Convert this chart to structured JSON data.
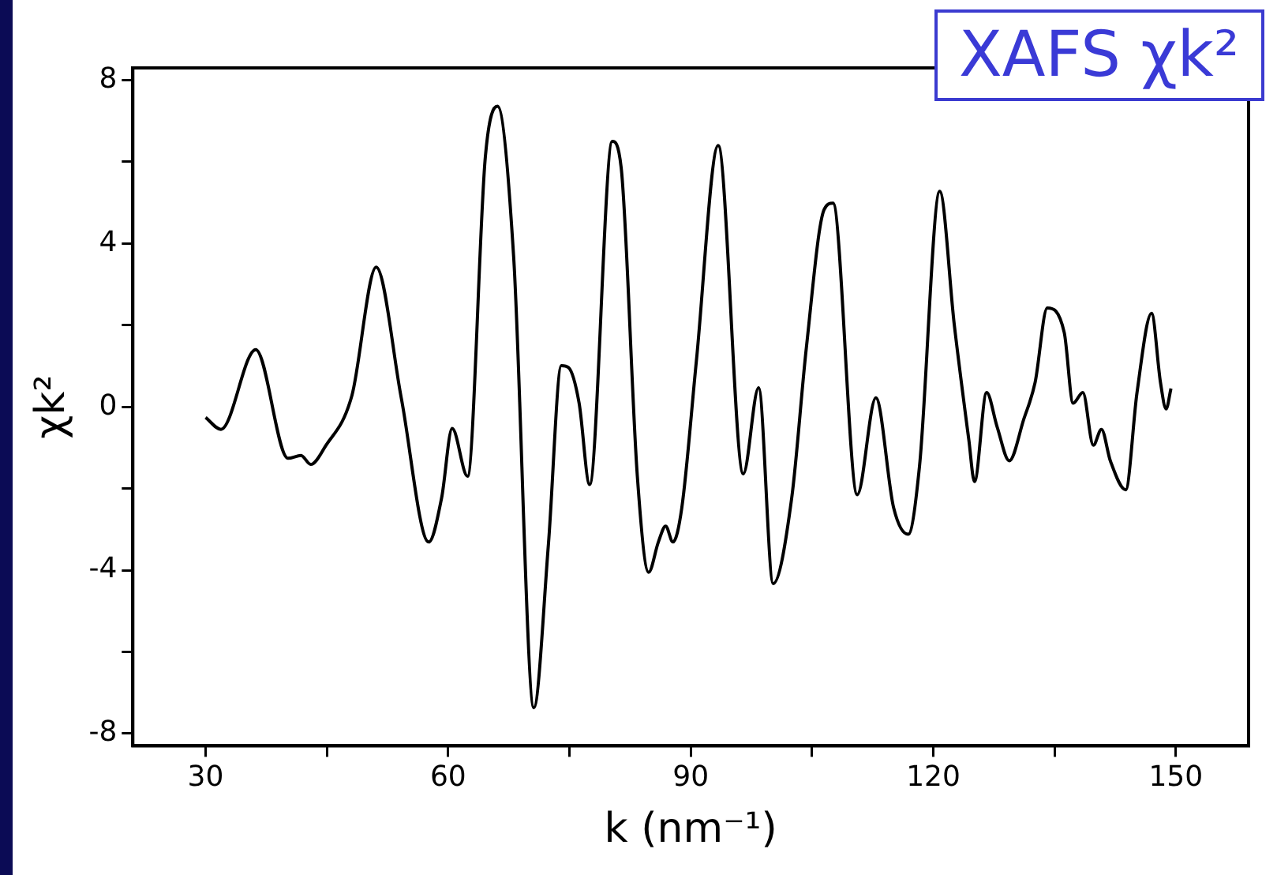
{
  "chart_data": {
    "type": "line",
    "title": "XAFS χk²",
    "xlabel": "k (nm⁻¹)",
    "ylabel": "χk²",
    "xlim": [
      21,
      159
    ],
    "xticks": [
      30,
      {
        "value": 45,
        "label": null
      },
      60,
      {
        "value": 75,
        "label": null
      },
      90,
      {
        "value": 105,
        "label": null
      },
      120,
      {
        "value": 135,
        "label": null
      },
      150
    ],
    "ylim": [
      -8.3,
      8.3
    ],
    "yticks": [
      -8,
      {
        "value": -6,
        "label": null
      },
      -4,
      {
        "value": -2,
        "label": null
      },
      0,
      {
        "value": 2,
        "label": null
      },
      4,
      {
        "value": 6,
        "label": null
      },
      8
    ],
    "grid": false,
    "legend": false,
    "marker": "none",
    "line_style": "solid",
    "series": [
      {
        "color": "#000000",
        "x": [
          30,
          31.9,
          36.2,
          40.2,
          41.8,
          43.0,
          44.8,
          48.1,
          51.1,
          54.2,
          57.6,
          59.2,
          60.5,
          62.4,
          64.6,
          66.1,
          68.1,
          70.6,
          72.4,
          74.0,
          74.9,
          76.2,
          77.5,
          80.3,
          81.4,
          83.4,
          84.8,
          86.0,
          86.9,
          87.8,
          88.9,
          90.7,
          93.4,
          96.5,
          98.4,
          100.2,
          102.5,
          104.3,
          106.5,
          107.6,
          110.6,
          112.9,
          115.1,
          116.9,
          118.3,
          120.8,
          122.6,
          124.4,
          125.1,
          126.6,
          127.9,
          129.4,
          131.2,
          132.6,
          134.1,
          136.2,
          137.3,
          138.5,
          139.8,
          140.8,
          141.9,
          143.8,
          145.2,
          147.0,
          148.1,
          148.8,
          149.4
        ],
        "values": [
          -0.26,
          -0.55,
          1.4,
          -1.26,
          -1.19,
          -1.41,
          -0.97,
          0.28,
          3.42,
          0.22,
          -3.31,
          -2.22,
          -0.53,
          -1.7,
          6.12,
          7.36,
          3.68,
          -7.37,
          -3.37,
          1.01,
          0.96,
          0.09,
          -1.9,
          6.5,
          5.86,
          -1.7,
          -4.05,
          -3.31,
          -2.92,
          -3.31,
          -2.47,
          1.12,
          6.4,
          -1.64,
          0.47,
          -4.33,
          -2.22,
          1.44,
          4.83,
          4.99,
          -2.15,
          0.22,
          -2.47,
          -3.12,
          -1.45,
          5.28,
          2.01,
          -0.81,
          -1.83,
          0.35,
          -0.49,
          -1.32,
          -0.3,
          0.6,
          2.42,
          1.82,
          0.09,
          0.35,
          -0.94,
          -0.55,
          -1.32,
          -2.03,
          0.35,
          2.29,
          0.6,
          -0.05,
          0.45
        ]
      }
    ]
  }
}
